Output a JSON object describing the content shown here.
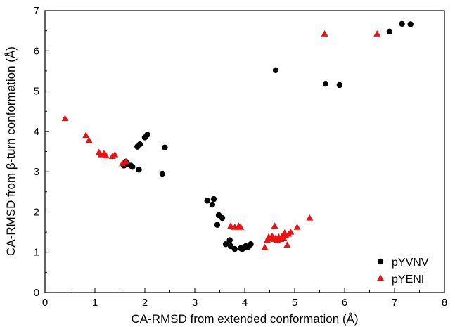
{
  "chart_data": {
    "type": "scatter",
    "title": "",
    "xlabel": "CA-RMSD from extended conformation (Å)",
    "ylabel": "CA-RMSD from β-turn conformation (Å)",
    "xlim": [
      0,
      8
    ],
    "ylim": [
      0,
      7
    ],
    "xticks": [
      "0",
      "1",
      "2",
      "3",
      "4",
      "5",
      "6",
      "7",
      "8"
    ],
    "yticks": [
      "0",
      "1",
      "2",
      "3",
      "4",
      "5",
      "6",
      "7"
    ],
    "grid": false,
    "legend_position": "bottom-right",
    "series": [
      {
        "name": "pYVNV",
        "marker": "circle",
        "color": "#000000",
        "points": [
          [
            1.58,
            3.15
          ],
          [
            1.62,
            3.25
          ],
          [
            1.65,
            3.18
          ],
          [
            1.72,
            3.15
          ],
          [
            1.75,
            3.12
          ],
          [
            1.85,
            3.62
          ],
          [
            1.88,
            3.05
          ],
          [
            1.9,
            3.68
          ],
          [
            2.0,
            3.85
          ],
          [
            2.05,
            3.92
          ],
          [
            2.35,
            2.95
          ],
          [
            2.4,
            3.6
          ],
          [
            3.25,
            2.28
          ],
          [
            3.35,
            2.18
          ],
          [
            3.38,
            2.32
          ],
          [
            3.45,
            1.68
          ],
          [
            3.48,
            1.92
          ],
          [
            3.55,
            1.85
          ],
          [
            3.62,
            1.2
          ],
          [
            3.7,
            1.3
          ],
          [
            3.72,
            1.15
          ],
          [
            3.8,
            1.08
          ],
          [
            3.92,
            1.1
          ],
          [
            3.95,
            1.08
          ],
          [
            4.0,
            1.12
          ],
          [
            4.02,
            1.15
          ],
          [
            4.05,
            1.12
          ],
          [
            4.08,
            1.15
          ],
          [
            4.12,
            1.2
          ],
          [
            4.62,
            5.52
          ],
          [
            5.62,
            5.18
          ],
          [
            5.9,
            5.15
          ],
          [
            6.9,
            6.48
          ],
          [
            7.15,
            6.67
          ],
          [
            7.32,
            6.66
          ]
        ]
      },
      {
        "name": "pYENI",
        "marker": "triangle",
        "color": "#ee1111",
        "points": [
          [
            0.4,
            4.32
          ],
          [
            0.82,
            3.9
          ],
          [
            0.88,
            3.78
          ],
          [
            1.08,
            3.48
          ],
          [
            1.12,
            3.42
          ],
          [
            1.18,
            3.45
          ],
          [
            1.22,
            3.4
          ],
          [
            1.35,
            3.38
          ],
          [
            1.4,
            3.42
          ],
          [
            1.55,
            3.2
          ],
          [
            1.62,
            3.25
          ],
          [
            3.72,
            1.65
          ],
          [
            3.8,
            1.62
          ],
          [
            3.88,
            1.65
          ],
          [
            3.92,
            1.62
          ],
          [
            4.4,
            1.12
          ],
          [
            4.45,
            1.3
          ],
          [
            4.48,
            1.38
          ],
          [
            4.52,
            1.35
          ],
          [
            4.55,
            1.4
          ],
          [
            4.58,
            1.32
          ],
          [
            4.6,
            1.65
          ],
          [
            4.62,
            1.35
          ],
          [
            4.65,
            1.3
          ],
          [
            4.68,
            1.38
          ],
          [
            4.72,
            1.32
          ],
          [
            4.75,
            1.4
          ],
          [
            4.78,
            1.35
          ],
          [
            4.8,
            1.48
          ],
          [
            4.82,
            1.42
          ],
          [
            4.85,
            1.18
          ],
          [
            4.88,
            1.45
          ],
          [
            4.92,
            1.5
          ],
          [
            5.05,
            1.62
          ],
          [
            5.3,
            1.85
          ],
          [
            5.6,
            6.42
          ],
          [
            6.65,
            6.42
          ]
        ]
      }
    ]
  }
}
